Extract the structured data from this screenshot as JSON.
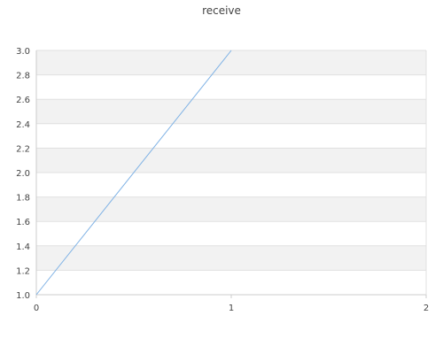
{
  "chart_data": {
    "type": "line",
    "title": "receive",
    "xlabel": "",
    "ylabel": "",
    "xlim": [
      0,
      2
    ],
    "ylim": [
      1.0,
      3.0
    ],
    "x_ticks": [
      "0",
      "1",
      "2"
    ],
    "y_ticks": [
      "1.0",
      "1.2",
      "1.4",
      "1.6",
      "1.8",
      "2.0",
      "2.2",
      "2.4",
      "2.6",
      "2.8",
      "3.0"
    ],
    "grid": "horizontal alternating bands",
    "legend": "none",
    "series": [
      {
        "x": [
          0,
          1
        ],
        "y": [
          1.0,
          3.0
        ],
        "color": "#7fb2e5"
      }
    ],
    "colors": {
      "band": "#f2f2f2",
      "gridline": "#e0e0e0",
      "axis": "#cccccc",
      "line": "#7fb2e5"
    }
  }
}
